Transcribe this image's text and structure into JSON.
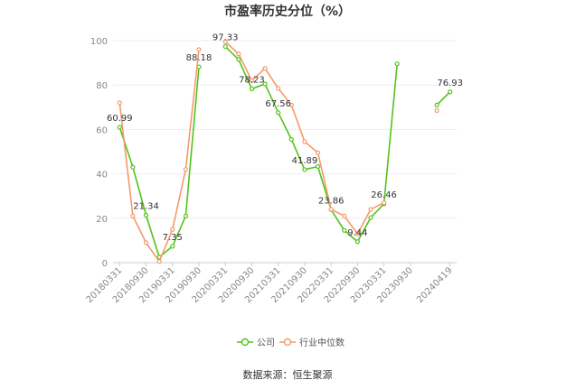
{
  "chart_data": {
    "type": "line",
    "title": "市盈率历史分位（%）",
    "source": "数据来源：恒生聚源",
    "ylim": [
      0,
      100
    ],
    "yticks": [
      0,
      20,
      40,
      60,
      80,
      100
    ],
    "grid": true,
    "legend_position": "bottom",
    "categories": [
      "20180331",
      "20180630",
      "20180930",
      "20181231",
      "20190331",
      "20190630",
      "20190930",
      "20191231",
      "20200331",
      "20200630",
      "20200930",
      "20201231",
      "20210331",
      "20210630",
      "20210930",
      "20211231",
      "20220331",
      "20220630",
      "20220930",
      "20221231",
      "20230331",
      "20230630",
      "20230930",
      "20231231",
      "20240331",
      "20240419"
    ],
    "tick_labels": [
      "20180331",
      "20180930",
      "20190331",
      "20190930",
      "20200331",
      "20200930",
      "20210331",
      "20210930",
      "20220331",
      "20220930",
      "20230331",
      "20230930",
      "20240419"
    ],
    "series": [
      {
        "name": "公司",
        "color": "#52c41a",
        "values": [
          60.99,
          43.0,
          21.34,
          2.5,
          7.35,
          21.0,
          88.18,
          null,
          97.33,
          91.5,
          78.23,
          80.5,
          67.56,
          55.5,
          41.89,
          43.3,
          23.86,
          14.5,
          9.44,
          20.3,
          26.46,
          89.5,
          null,
          null,
          71.0,
          76.93
        ]
      },
      {
        "name": "行业中位数",
        "color": "#f59a6b",
        "values": [
          72.0,
          21.0,
          9.0,
          0.5,
          15.0,
          42.0,
          96.0,
          null,
          99.5,
          94.0,
          82.0,
          87.5,
          78.5,
          71.0,
          54.5,
          49.5,
          24.0,
          21.0,
          13.0,
          24.0,
          27.0,
          null,
          null,
          null,
          68.5,
          null
        ]
      }
    ],
    "data_labels": [
      {
        "series": 0,
        "index": 0,
        "text": "60.99"
      },
      {
        "series": 0,
        "index": 2,
        "text": "21.34"
      },
      {
        "series": 0,
        "index": 4,
        "text": "7.35"
      },
      {
        "series": 0,
        "index": 6,
        "text": "88.18"
      },
      {
        "series": 0,
        "index": 8,
        "text": "97.33"
      },
      {
        "series": 0,
        "index": 10,
        "text": "78.23"
      },
      {
        "series": 0,
        "index": 12,
        "text": "67.56"
      },
      {
        "series": 0,
        "index": 14,
        "text": "41.89"
      },
      {
        "series": 0,
        "index": 16,
        "text": "23.86"
      },
      {
        "series": 0,
        "index": 18,
        "text": "9.44"
      },
      {
        "series": 0,
        "index": 20,
        "text": "26.46"
      },
      {
        "series": 0,
        "index": 25,
        "text": "76.93"
      }
    ]
  }
}
